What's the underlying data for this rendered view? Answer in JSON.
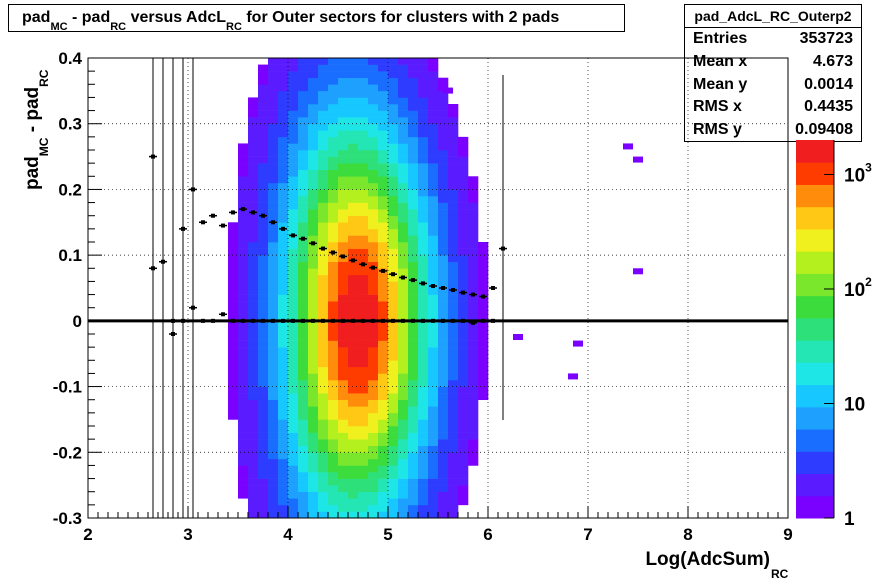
{
  "title": {
    "main": "pad",
    "sub1": "MC",
    "mid1": " - pad",
    "sub2": "RC",
    "mid2": " versus AdcL",
    "sub3": "RC",
    "rest": " for Outer sectors for clusters with 2 pads"
  },
  "stats": {
    "name": "pad_AdcL_RC_Outerp2",
    "rows": [
      {
        "label": "Entries",
        "value": "353723"
      },
      {
        "label": "Mean x",
        "value": "4.673"
      },
      {
        "label": "Mean y",
        "value": "0.0014"
      },
      {
        "label": "RMS x",
        "value": "0.4435"
      },
      {
        "label": "RMS y",
        "value": "0.09408"
      }
    ]
  },
  "chart_data": {
    "type": "heatmap",
    "xlabel": {
      "main": "Log(AdcSum)",
      "sub": "RC"
    },
    "ylabel": {
      "main": "pad",
      "sub1": "MC",
      "mid": " - pad",
      "sub2": "RC"
    },
    "xlim": [
      2,
      9
    ],
    "ylim": [
      -0.3,
      0.4
    ],
    "x_ticks": [
      "2",
      "3",
      "4",
      "5",
      "6",
      "7",
      "8",
      "9"
    ],
    "y_ticks": [
      "-0.3",
      "-0.2",
      "-0.1",
      "0",
      "0.1",
      "0.2",
      "0.3",
      "0.4"
    ],
    "grid": true,
    "z_scale": "log",
    "zlim": [
      1,
      2000
    ],
    "z_ticks": [
      "1",
      "10",
      "10^2",
      "10^3"
    ],
    "profile_mean": [
      {
        "x": 2.65,
        "y": 0.25
      },
      {
        "x": 2.65,
        "y": 0.08
      },
      {
        "x": 2.75,
        "y": 0.09
      },
      {
        "x": 2.85,
        "y": -0.02
      },
      {
        "x": 2.95,
        "y": 0.14
      },
      {
        "x": 3.05,
        "y": 0.2
      },
      {
        "x": 3.15,
        "y": 0.15
      },
      {
        "x": 3.25,
        "y": 0.16
      },
      {
        "x": 3.35,
        "y": 0.145
      },
      {
        "x": 3.45,
        "y": 0.165
      },
      {
        "x": 3.55,
        "y": 0.17
      },
      {
        "x": 3.65,
        "y": 0.165
      },
      {
        "x": 3.75,
        "y": 0.16
      },
      {
        "x": 3.85,
        "y": 0.15
      },
      {
        "x": 3.95,
        "y": 0.14
      },
      {
        "x": 4.05,
        "y": 0.13
      },
      {
        "x": 4.15,
        "y": 0.125
      },
      {
        "x": 4.25,
        "y": 0.118
      },
      {
        "x": 4.35,
        "y": 0.11
      },
      {
        "x": 4.45,
        "y": 0.104
      },
      {
        "x": 4.55,
        "y": 0.098
      },
      {
        "x": 4.65,
        "y": 0.092
      },
      {
        "x": 4.75,
        "y": 0.086
      },
      {
        "x": 4.85,
        "y": 0.081
      },
      {
        "x": 4.95,
        "y": 0.076
      },
      {
        "x": 5.05,
        "y": 0.071
      },
      {
        "x": 5.15,
        "y": 0.066
      },
      {
        "x": 5.25,
        "y": 0.062
      },
      {
        "x": 5.35,
        "y": 0.057
      },
      {
        "x": 5.45,
        "y": 0.053
      },
      {
        "x": 5.55,
        "y": 0.05
      },
      {
        "x": 5.65,
        "y": 0.047
      },
      {
        "x": 5.75,
        "y": 0.043
      },
      {
        "x": 5.85,
        "y": 0.04
      },
      {
        "x": 5.95,
        "y": 0.037
      },
      {
        "x": 6.05,
        "y": 0.05
      },
      {
        "x": 6.15,
        "y": 0.11
      }
    ],
    "profile_zero": [
      {
        "x": 2.85,
        "y": 0.0
      },
      {
        "x": 2.95,
        "y": 0.0
      },
      {
        "x": 3.05,
        "y": 0.02
      },
      {
        "x": 3.15,
        "y": 0.0
      },
      {
        "x": 3.25,
        "y": 0.0
      },
      {
        "x": 3.35,
        "y": 0.01
      },
      {
        "x": 3.45,
        "y": 0.0
      },
      {
        "x": 3.55,
        "y": 0.0
      },
      {
        "x": 3.65,
        "y": 0.0
      },
      {
        "x": 3.75,
        "y": 0.0
      },
      {
        "x": 3.85,
        "y": 0.0
      },
      {
        "x": 3.95,
        "y": 0.0
      },
      {
        "x": 4.05,
        "y": 0.0
      },
      {
        "x": 4.15,
        "y": 0.0
      },
      {
        "x": 4.25,
        "y": 0.0
      },
      {
        "x": 4.35,
        "y": 0.0
      },
      {
        "x": 4.45,
        "y": 0.0
      },
      {
        "x": 4.55,
        "y": 0.0
      },
      {
        "x": 4.65,
        "y": 0.0
      },
      {
        "x": 4.75,
        "y": 0.0
      },
      {
        "x": 4.85,
        "y": 0.0
      },
      {
        "x": 4.95,
        "y": 0.0
      },
      {
        "x": 5.05,
        "y": 0.0
      },
      {
        "x": 5.15,
        "y": 0.0
      },
      {
        "x": 5.25,
        "y": 0.0
      },
      {
        "x": 5.35,
        "y": 0.0
      },
      {
        "x": 5.45,
        "y": 0.0
      },
      {
        "x": 5.55,
        "y": 0.0
      },
      {
        "x": 5.65,
        "y": 0.0
      },
      {
        "x": 5.75,
        "y": 0.0
      },
      {
        "x": 5.85,
        "y": -0.003
      },
      {
        "x": 5.95,
        "y": 0.0
      },
      {
        "x": 6.05,
        "y": 0.0
      }
    ],
    "palette": [
      "#7a00ff",
      "#5a1cff",
      "#2e3cff",
      "#1a6eff",
      "#1ea0ff",
      "#16c8ff",
      "#1ee6e6",
      "#24e6b4",
      "#2ee07a",
      "#3cdc3c",
      "#7ae62c",
      "#b4f01e",
      "#f0f01e",
      "#ffc814",
      "#ff8c0a",
      "#ff3c00",
      "#f01e1e"
    ]
  }
}
